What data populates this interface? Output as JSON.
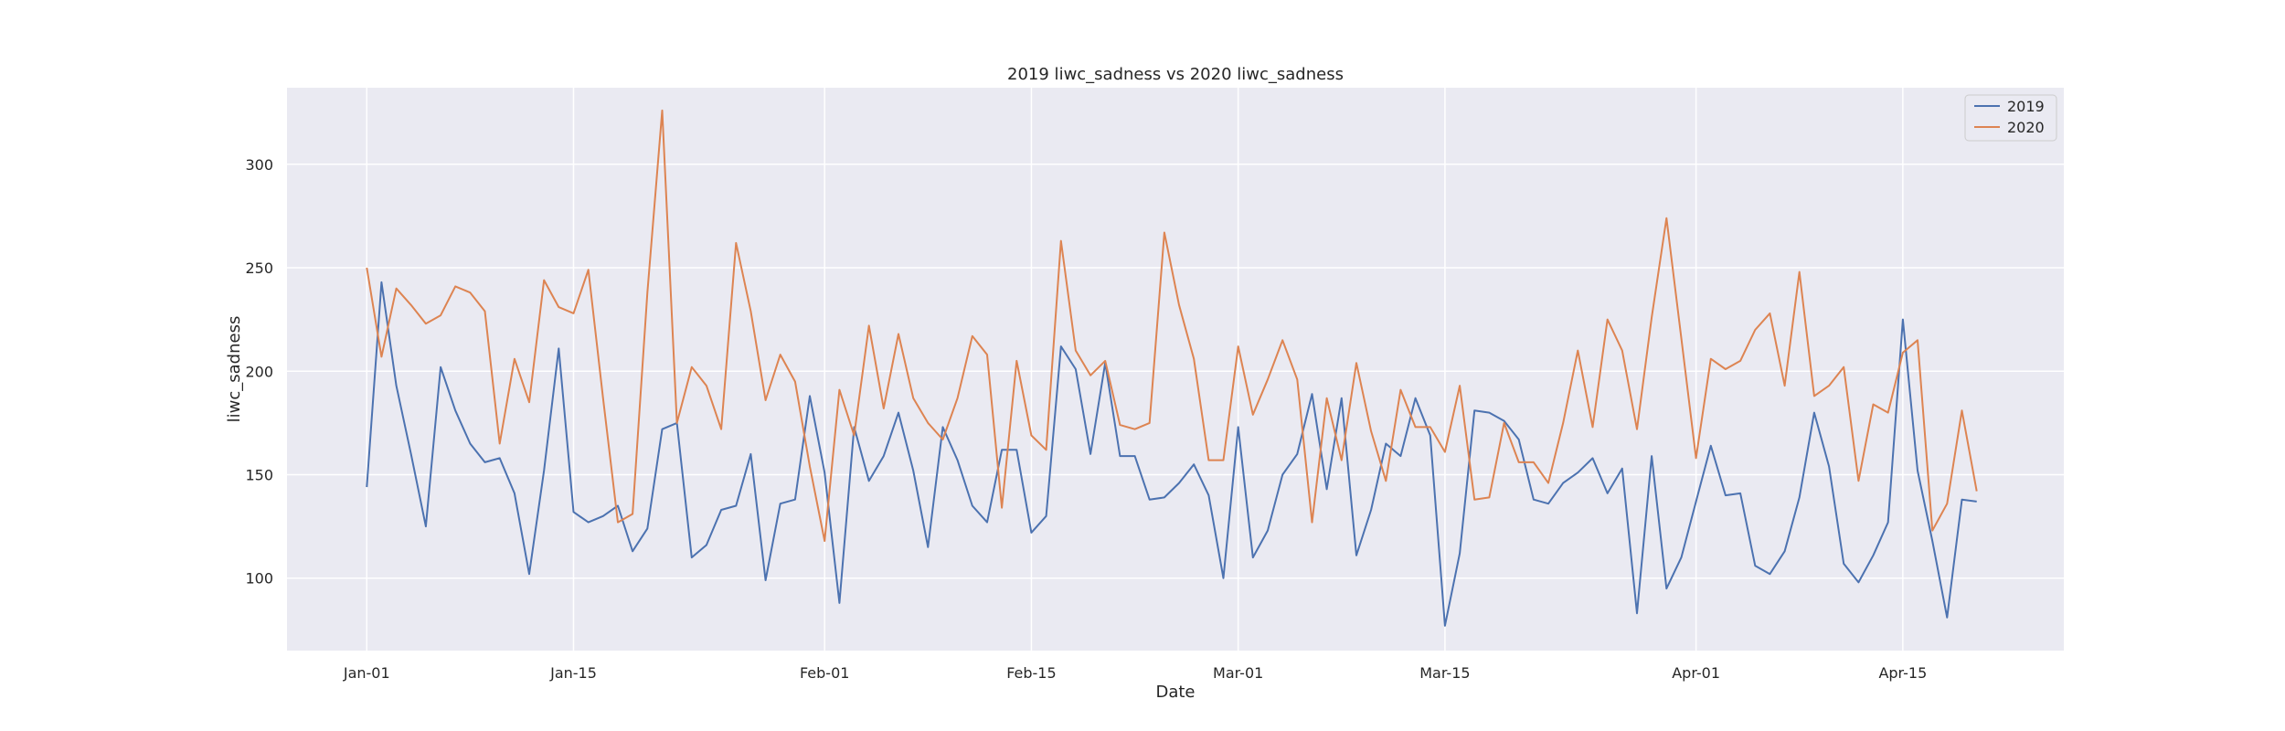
{
  "chart_data": {
    "type": "line",
    "title": "2019 liwc_sadness vs 2020 liwc_sadness",
    "xlabel": "Date",
    "ylabel": "liwc_sadness",
    "x_start": "Jan-01",
    "x_ticks": [
      {
        "label": "Jan-01",
        "day": 0
      },
      {
        "label": "Jan-15",
        "day": 14
      },
      {
        "label": "Feb-01",
        "day": 31
      },
      {
        "label": "Feb-15",
        "day": 45
      },
      {
        "label": "Mar-01",
        "day": 59
      },
      {
        "label": "Mar-15",
        "day": 73
      },
      {
        "label": "Apr-01",
        "day": 90
      },
      {
        "label": "Apr-15",
        "day": 104
      }
    ],
    "xlim": [
      -5.4,
      114.9
    ],
    "yticks": [
      100,
      150,
      200,
      250,
      300
    ],
    "ylim": [
      65,
      337
    ],
    "grid": true,
    "legend_position": "top-right",
    "series": [
      {
        "name": "2019",
        "color": "#4c72b0",
        "values": [
          144,
          243,
          193,
          160,
          125,
          202,
          181,
          165,
          156,
          158,
          141,
          102,
          152,
          211,
          132,
          127,
          130,
          135,
          113,
          124,
          172,
          175,
          110,
          116,
          133,
          135,
          160,
          99,
          136,
          138,
          188,
          151,
          88,
          173,
          147,
          159,
          180,
          152,
          115,
          173,
          157,
          135,
          127,
          162,
          162,
          122,
          130,
          212,
          201,
          160,
          204,
          159,
          159,
          138,
          139,
          146,
          155,
          140,
          100,
          173,
          110,
          123,
          150,
          160,
          189,
          143,
          187,
          111,
          133,
          165,
          159,
          187,
          169,
          77,
          112,
          181,
          180,
          176,
          167,
          138,
          136,
          146,
          151,
          158,
          141,
          153,
          83,
          159,
          95,
          110,
          137,
          164,
          140,
          141,
          106,
          102,
          113,
          139,
          180,
          154,
          107,
          98,
          111,
          127,
          225,
          152,
          118,
          81,
          138,
          137
        ]
      },
      {
        "name": "2020",
        "color": "#dd8452",
        "values": [
          250,
          207,
          240,
          232,
          223,
          227,
          241,
          238,
          229,
          165,
          206,
          185,
          244,
          231,
          228,
          249,
          187,
          127,
          131,
          238,
          326,
          175,
          202,
          193,
          172,
          262,
          229,
          186,
          208,
          195,
          154,
          118,
          191,
          169,
          222,
          182,
          218,
          187,
          175,
          167,
          187,
          217,
          208,
          134,
          205,
          169,
          162,
          263,
          210,
          198,
          205,
          174,
          172,
          175,
          267,
          232,
          206,
          157,
          157,
          212,
          179,
          196,
          215,
          196,
          127,
          187,
          157,
          204,
          171,
          147,
          191,
          173,
          173,
          161,
          193,
          138,
          139,
          175,
          156,
          156,
          146,
          175,
          210,
          173,
          225,
          210,
          172,
          226,
          274,
          216,
          158,
          206,
          201,
          205,
          220,
          228,
          193,
          248,
          188,
          193,
          202,
          147,
          184,
          180,
          209,
          215,
          123,
          136,
          181,
          142
        ]
      }
    ]
  }
}
